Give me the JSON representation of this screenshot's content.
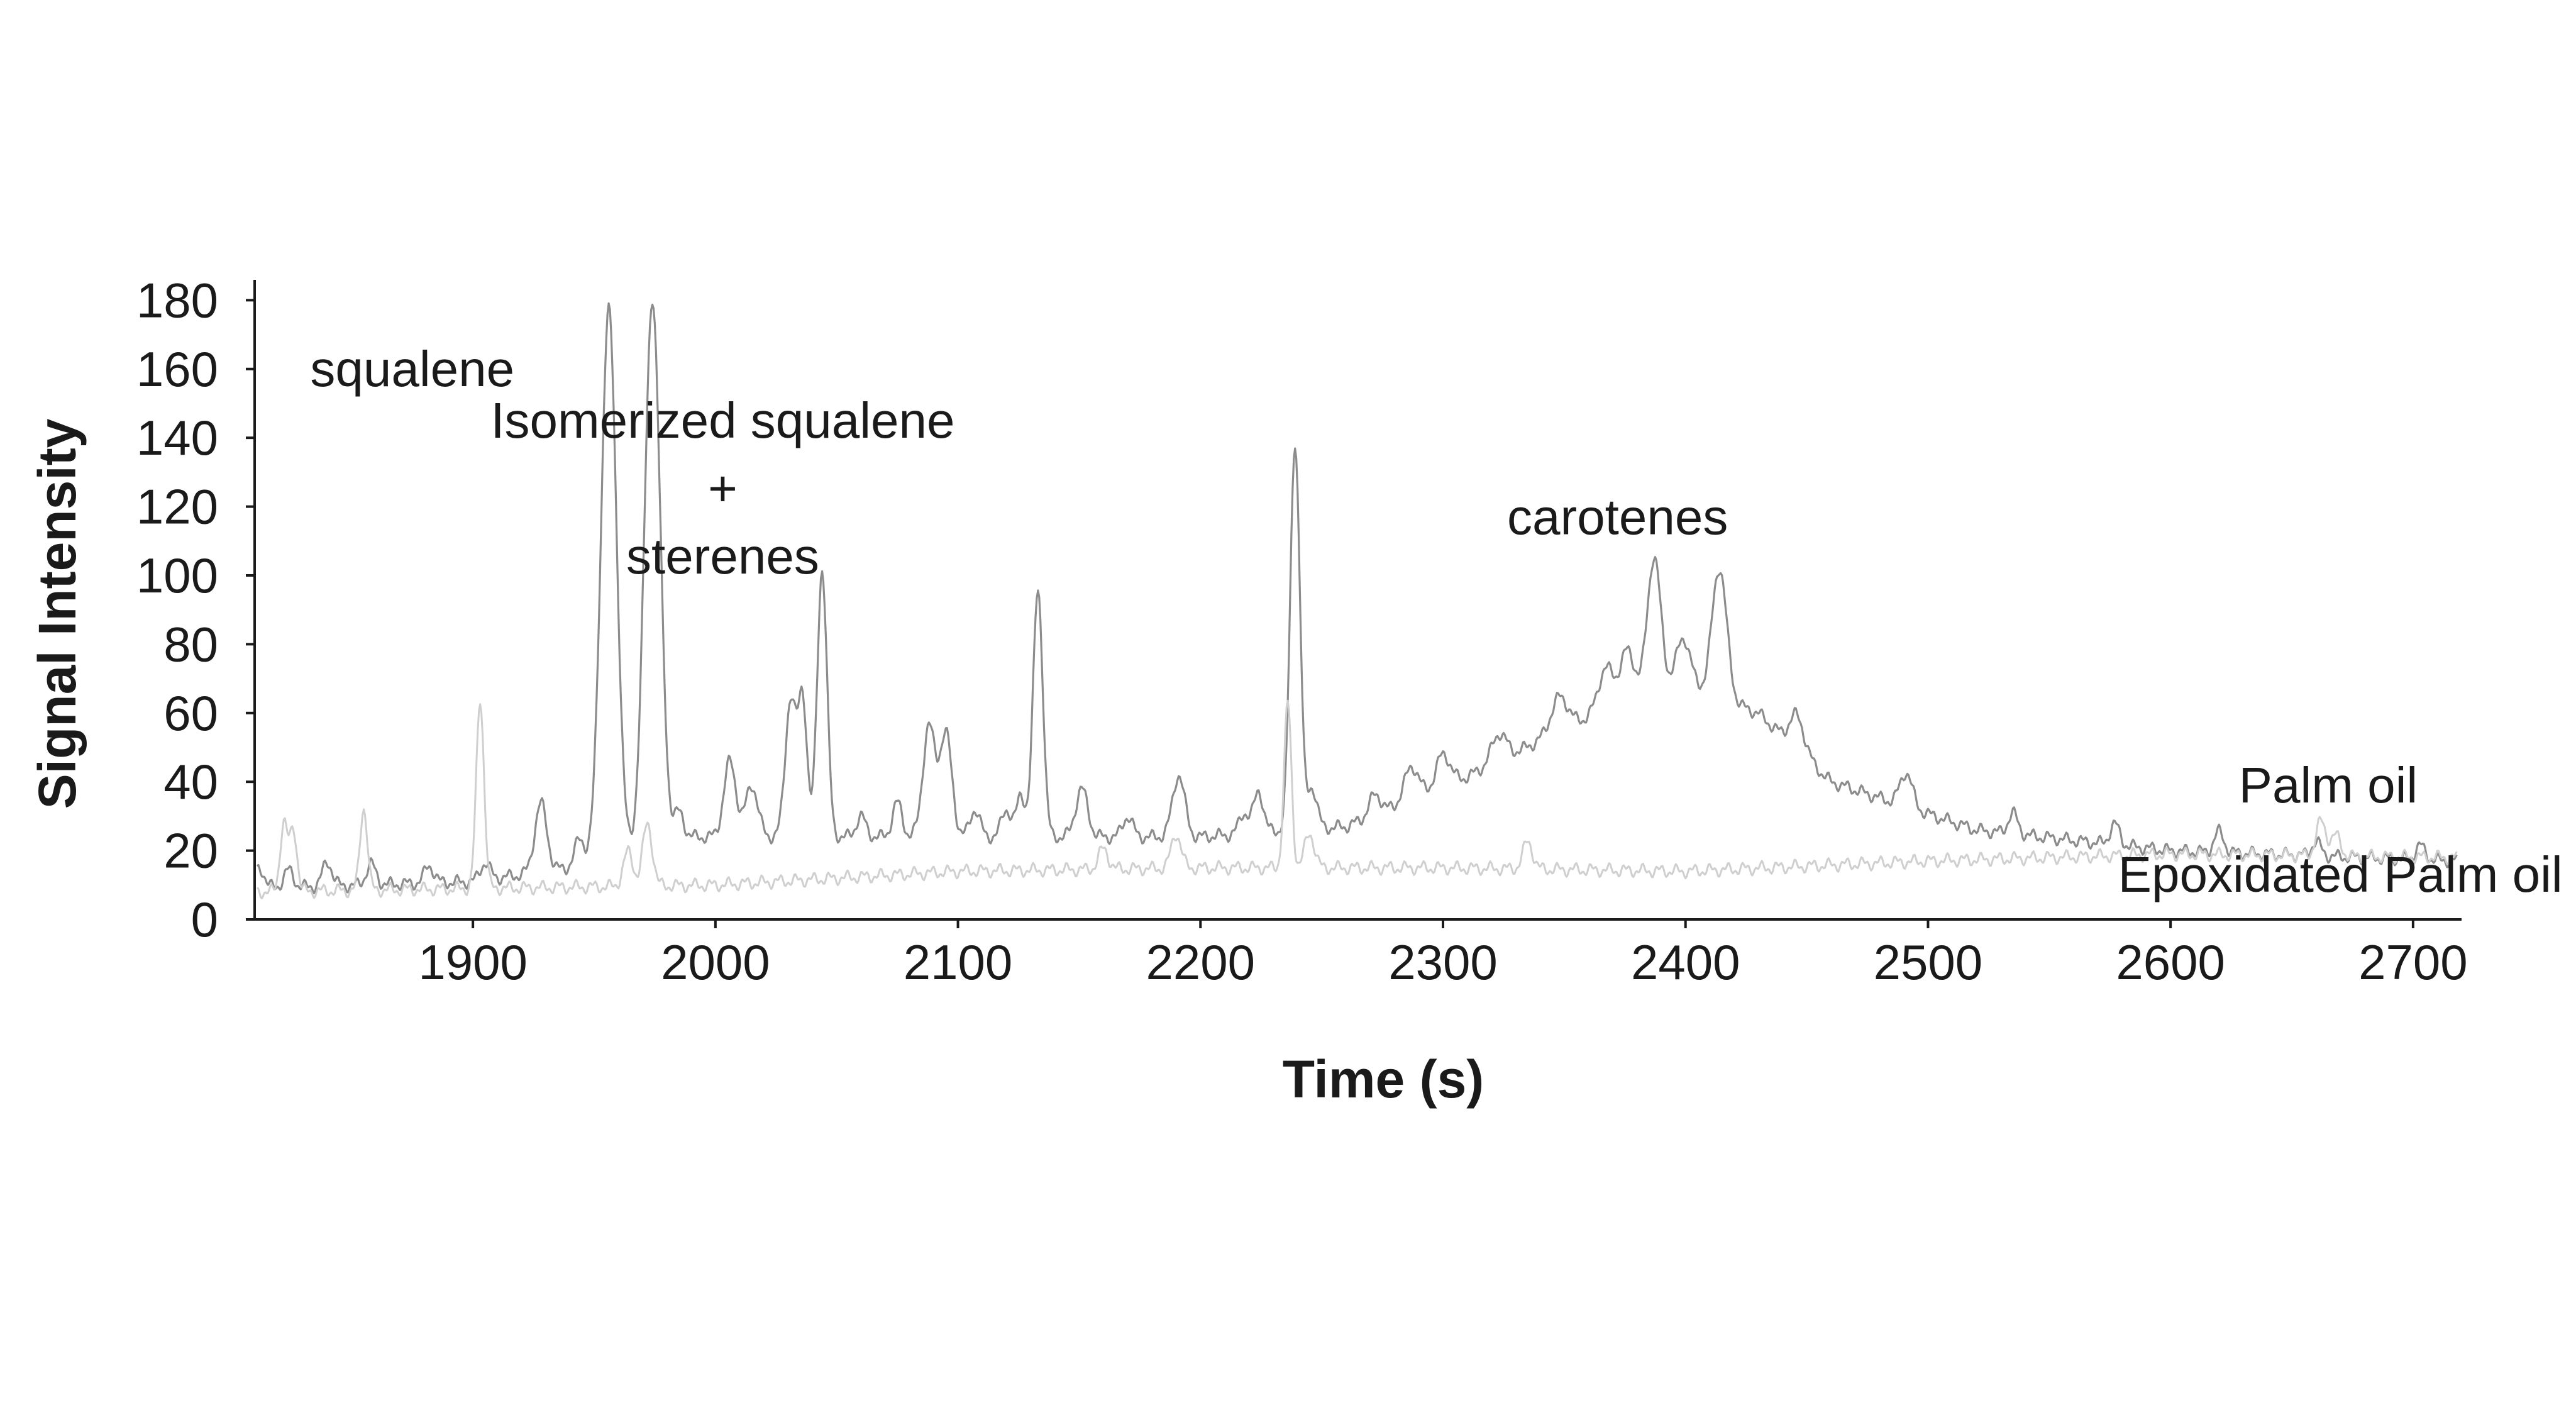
{
  "chart_data": {
    "type": "line",
    "title": "",
    "xlabel": "Time (s)",
    "ylabel": "Signal Intensity",
    "xlim": [
      1810,
      2720
    ],
    "ylim": [
      0,
      185
    ],
    "xticks": [
      1900,
      2000,
      2100,
      2200,
      2300,
      2400,
      2500,
      2600,
      2700
    ],
    "yticks": [
      0,
      20,
      40,
      60,
      80,
      100,
      120,
      140,
      160,
      180
    ],
    "grid": false,
    "legend": "none",
    "annotations": [
      {
        "id": "squalene",
        "lines": [
          "squalene"
        ],
        "x": 1875,
        "y": 155
      },
      {
        "id": "isomerized",
        "lines": [
          "Isomerized squalene",
          "+",
          "sterenes"
        ],
        "x": 2003,
        "y": 140
      },
      {
        "id": "carotenes",
        "lines": [
          "carotenes"
        ],
        "x": 2372,
        "y": 112
      },
      {
        "id": "palm-oil",
        "lines": [
          "Palm oil"
        ],
        "x": 2665,
        "y": 34
      },
      {
        "id": "epoxidated",
        "lines": [
          "Epoxidated Palm oil"
        ],
        "x": 2670,
        "y": 8
      }
    ],
    "series": [
      {
        "name": "Palm oil",
        "color": "#8c8c8c",
        "baseline": [
          [
            1810,
            9
          ],
          [
            1900,
            11
          ],
          [
            1950,
            16
          ],
          [
            1990,
            24
          ],
          [
            2100,
            24
          ],
          [
            2200,
            24
          ],
          [
            2260,
            27
          ],
          [
            2300,
            38
          ],
          [
            2340,
            52
          ],
          [
            2370,
            62
          ],
          [
            2400,
            68
          ],
          [
            2430,
            60
          ],
          [
            2460,
            40
          ],
          [
            2520,
            26
          ],
          [
            2600,
            20
          ],
          [
            2720,
            17
          ]
        ],
        "peaks": [
          [
            1812,
            6,
            2
          ],
          [
            1824,
            5,
            2
          ],
          [
            1840,
            7,
            2
          ],
          [
            1858,
            6,
            2
          ],
          [
            1882,
            5,
            2
          ],
          [
            1905,
            5,
            2
          ],
          [
            1928,
            20,
            2.5
          ],
          [
            1944,
            8,
            2
          ],
          [
            1956,
            160,
            3.2
          ],
          [
            1974,
            160,
            3.2
          ],
          [
            1985,
            8,
            2
          ],
          [
            2006,
            22,
            2.5
          ],
          [
            2015,
            15,
            2.5
          ],
          [
            2031,
            40,
            2.2
          ],
          [
            2036,
            40,
            1.8
          ],
          [
            2044,
            78,
            2
          ],
          [
            2060,
            6,
            2
          ],
          [
            2075,
            10,
            2
          ],
          [
            2088,
            32,
            2.5
          ],
          [
            2095,
            30,
            2.5
          ],
          [
            2107,
            8,
            2
          ],
          [
            2120,
            8,
            2
          ],
          [
            2126,
            12,
            1.8
          ],
          [
            2133,
            72,
            2
          ],
          [
            2151,
            14,
            2.5
          ],
          [
            2170,
            6,
            2
          ],
          [
            2191,
            18,
            2.5
          ],
          [
            2218,
            6,
            2
          ],
          [
            2224,
            12,
            2
          ],
          [
            2239,
            113,
            2
          ],
          [
            2246,
            12,
            2
          ],
          [
            2272,
            6,
            2.5
          ],
          [
            2287,
            10,
            3
          ],
          [
            2300,
            10,
            3
          ],
          [
            2323,
            8,
            3
          ],
          [
            2348,
            10,
            3.5
          ],
          [
            2367,
            12,
            3
          ],
          [
            2376,
            15,
            3
          ],
          [
            2387,
            40,
            2.8
          ],
          [
            2399,
            14,
            3
          ],
          [
            2414,
            38,
            3
          ],
          [
            2446,
            10,
            3
          ],
          [
            2491,
            10,
            2.5
          ],
          [
            2535,
            6,
            2
          ],
          [
            2577,
            6,
            2
          ],
          [
            2620,
            6,
            2
          ],
          [
            2660,
            4,
            2
          ],
          [
            2703,
            4,
            2
          ]
        ]
      },
      {
        "name": "Epoxidated Palm oil",
        "color": "#cfcfcf",
        "baseline": [
          [
            1810,
            8
          ],
          [
            1900,
            9
          ],
          [
            2000,
            10
          ],
          [
            2100,
            14
          ],
          [
            2200,
            15
          ],
          [
            2300,
            15
          ],
          [
            2400,
            14
          ],
          [
            2500,
            17
          ],
          [
            2600,
            19
          ],
          [
            2720,
            18
          ]
        ],
        "peaks": [
          [
            1822,
            20,
            1.5
          ],
          [
            1826,
            18,
            1.5
          ],
          [
            1855,
            24,
            1.5
          ],
          [
            1903,
            55,
            1.6
          ],
          [
            1964,
            10,
            2
          ],
          [
            1972,
            18,
            2
          ],
          [
            2160,
            6,
            2
          ],
          [
            2190,
            10,
            2
          ],
          [
            2236,
            48,
            1.5
          ],
          [
            2245,
            10,
            2
          ],
          [
            2335,
            8,
            2
          ],
          [
            2662,
            10,
            2
          ],
          [
            2668,
            6,
            2
          ]
        ]
      }
    ]
  }
}
